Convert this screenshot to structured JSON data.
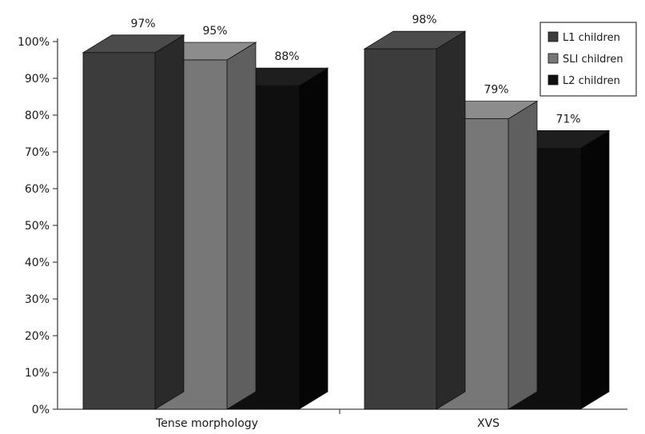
{
  "chart_data": {
    "type": "bar",
    "categories": [
      "Tense morphology",
      "XVS"
    ],
    "series": [
      {
        "name": "L1 children",
        "values": [
          97,
          98
        ],
        "labels": [
          "97%",
          "98%"
        ],
        "front": "#3c3c3c",
        "top": "#4b4b4b",
        "side": "#2a2a2a"
      },
      {
        "name": "SLI children",
        "values": [
          95,
          79
        ],
        "labels": [
          "95%",
          "79%"
        ],
        "front": "#777777",
        "top": "#8c8c8c",
        "side": "#5f5f5f"
      },
      {
        "name": "L2 children",
        "values": [
          88,
          71
        ],
        "labels": [
          "88%",
          "71%"
        ],
        "front": "#0f0f0f",
        "top": "#1e1e1e",
        "side": "#050505"
      }
    ],
    "yticks": [
      "0%",
      "10%",
      "20%",
      "30%",
      "40%",
      "50%",
      "60%",
      "70%",
      "80%",
      "90%",
      "100%"
    ],
    "ylim": [
      0,
      100
    ],
    "title": "",
    "xlabel": "",
    "ylabel": "",
    "legend_position": "top-right",
    "grid": false
  }
}
